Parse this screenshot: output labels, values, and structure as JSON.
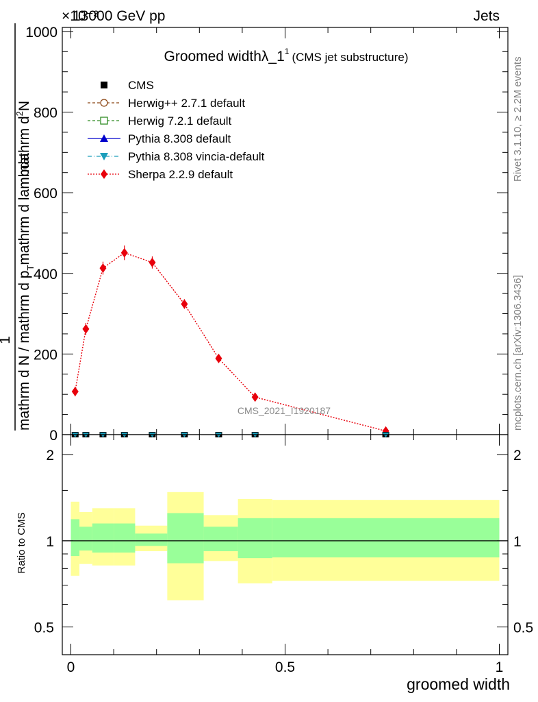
{
  "header": {
    "energy": "13000 GeV pp",
    "process": "Jets",
    "exponent": "×10⁻³"
  },
  "side_labels": {
    "rivet": "Rivet 3.1.10, ≥ 2.2M events",
    "mcplots": "mcplots.cern.ch [arXiv:1306.3436]"
  },
  "watermark": "CMS_2021_I1920187",
  "chart_data": [
    {
      "type": "line",
      "title_main": "Groomed widthλ_1",
      "title_sup": "1",
      "title_sub": "(CMS jet substructure)",
      "xlim": [
        -0.02,
        1.02
      ],
      "ylim": [
        0,
        1010
      ],
      "ylabel": {
        "prefix": "1",
        "lower": "mathrm d N / mathrm d p",
        "lower_sub": "T",
        "lower_tail": "mathrm d lambda",
        "upper": "mathrm d",
        "upper_sup": "2",
        "upper_tail": "N",
        "full": "mathrm d p",
        "full_sub": "T",
        "full_tail": " mathrm d lambda"
      },
      "ylabel_tail": "mathrm d p_T mathrm d lambda",
      "y_ticks": [
        {
          "value": 0,
          "label": "0"
        },
        {
          "value": 200,
          "label": "200"
        },
        {
          "value": 400,
          "label": "400"
        },
        {
          "value": 600,
          "label": "600"
        },
        {
          "value": 800,
          "label": "800"
        },
        {
          "value": 1000,
          "label": "1000"
        }
      ],
      "legend": [
        {
          "label": "CMS",
          "color": "#000000",
          "style": "square"
        },
        {
          "label": "Herwig++ 2.7.1 default",
          "color": "#8b4513",
          "style": "circle-dash"
        },
        {
          "label": "Herwig 7.2.1 default",
          "color": "#2e8b22",
          "style": "square-open-dash"
        },
        {
          "label": "Pythia 8.308 default",
          "color": "#0000cc",
          "style": "triangle-solid"
        },
        {
          "label": "Pythia 8.308 vincia-default",
          "color": "#1b9ebb",
          "style": "triangle-down-dashdot"
        },
        {
          "label": "Sherpa 2.2.9 default",
          "color": "#e8000b",
          "style": "diamond-dot"
        }
      ],
      "series": [
        {
          "name": "Sherpa 2.2.9 default",
          "color": "#e8000b",
          "x": [
            0.01,
            0.035,
            0.075,
            0.125,
            0.19,
            0.265,
            0.345,
            0.43,
            0.735
          ],
          "y": [
            107,
            262,
            413,
            451,
            427,
            324,
            189,
            93,
            9
          ],
          "err": [
            12,
            15,
            16,
            18,
            15,
            12,
            9,
            5,
            3
          ]
        },
        {
          "name": "CMS",
          "color": "#000000",
          "x": [
            0.01,
            0.035,
            0.075,
            0.125,
            0.19,
            0.265,
            0.345,
            0.43,
            0.735
          ],
          "y": [
            0,
            0,
            0,
            0,
            0,
            0,
            0,
            0,
            0
          ]
        }
      ]
    },
    {
      "type": "area",
      "ylabel": "Ratio to CMS",
      "xlabel": "groomed width",
      "xlim": [
        -0.02,
        1.02
      ],
      "ylim": [
        0.4,
        2.35
      ],
      "y_scale": "log",
      "y_ticks": [
        {
          "value": 0.5,
          "label": "0.5"
        },
        {
          "value": 1,
          "label": "1"
        },
        {
          "value": 2,
          "label": "2"
        }
      ],
      "x_ticks": [
        {
          "value": 0,
          "label": "0"
        },
        {
          "value": 0.5,
          "label": "0.5"
        },
        {
          "value": 1,
          "label": "1"
        }
      ],
      "bins": [
        {
          "lo": 0.0,
          "hi": 0.02,
          "in_lo": 0.885,
          "in_hi": 1.19,
          "out_lo": 0.755,
          "out_hi": 1.37
        },
        {
          "lo": 0.02,
          "hi": 0.05,
          "in_lo": 0.925,
          "in_hi": 1.12,
          "out_lo": 0.83,
          "out_hi": 1.26
        },
        {
          "lo": 0.05,
          "hi": 0.1,
          "in_lo": 0.91,
          "in_hi": 1.15,
          "out_lo": 0.82,
          "out_hi": 1.3
        },
        {
          "lo": 0.1,
          "hi": 0.15,
          "in_lo": 0.91,
          "in_hi": 1.15,
          "out_lo": 0.82,
          "out_hi": 1.3
        },
        {
          "lo": 0.15,
          "hi": 0.225,
          "in_lo": 0.96,
          "in_hi": 1.06,
          "out_lo": 0.92,
          "out_hi": 1.13
        },
        {
          "lo": 0.225,
          "hi": 0.31,
          "in_lo": 0.835,
          "in_hi": 1.25,
          "out_lo": 0.62,
          "out_hi": 1.48
        },
        {
          "lo": 0.31,
          "hi": 0.39,
          "in_lo": 0.92,
          "in_hi": 1.12,
          "out_lo": 0.85,
          "out_hi": 1.23
        },
        {
          "lo": 0.39,
          "hi": 0.47,
          "in_lo": 0.87,
          "in_hi": 1.2,
          "out_lo": 0.71,
          "out_hi": 1.4
        },
        {
          "lo": 0.47,
          "hi": 1.0,
          "in_lo": 0.875,
          "in_hi": 1.2,
          "out_lo": 0.725,
          "out_hi": 1.39
        }
      ]
    }
  ]
}
